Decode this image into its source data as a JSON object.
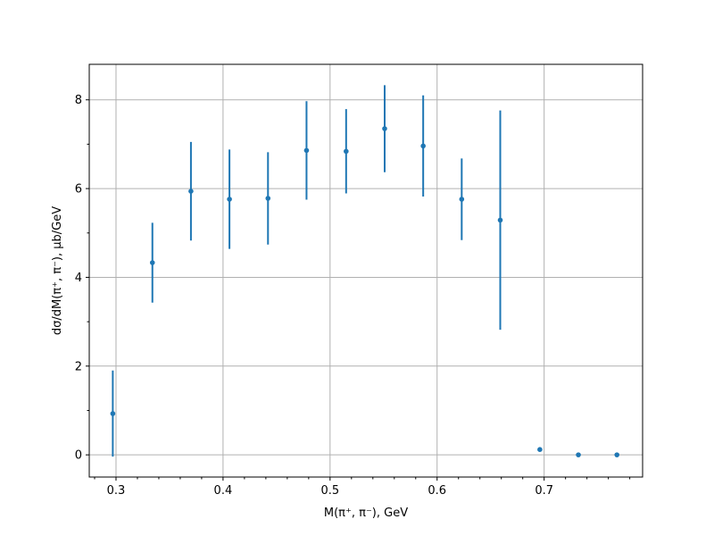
{
  "chart_data": {
    "type": "scatter",
    "xlabel": "M(π⁺, π⁻), GeV",
    "ylabel": "dσ/dM(π⁺, π⁻), μb/GeV",
    "xlim": [
      0.275,
      0.792
    ],
    "ylim": [
      -0.5,
      8.8
    ],
    "x_ticks": [
      0.3,
      0.4,
      0.5,
      0.6,
      0.7
    ],
    "x_tick_labels": [
      "0.3",
      "0.4",
      "0.5",
      "0.6",
      "0.7"
    ],
    "x_minor_ticks": [
      0.28,
      0.32,
      0.34,
      0.36,
      0.38,
      0.42,
      0.44,
      0.46,
      0.48,
      0.52,
      0.54,
      0.56,
      0.58,
      0.62,
      0.64,
      0.66,
      0.68,
      0.72,
      0.74,
      0.76,
      0.78
    ],
    "y_ticks": [
      0,
      2,
      4,
      6,
      8
    ],
    "y_tick_labels": [
      "0",
      "2",
      "4",
      "6",
      "8"
    ],
    "y_minor_ticks": [
      1,
      3,
      5,
      7
    ],
    "grid": true,
    "color": "#1f77b4",
    "points": [
      {
        "x": 0.297,
        "y": 0.93,
        "err": 0.97
      },
      {
        "x": 0.334,
        "y": 4.33,
        "err": 0.9
      },
      {
        "x": 0.37,
        "y": 5.94,
        "err": 1.11
      },
      {
        "x": 0.406,
        "y": 5.76,
        "err": 1.12
      },
      {
        "x": 0.442,
        "y": 5.78,
        "err": 1.04
      },
      {
        "x": 0.478,
        "y": 6.86,
        "err": 1.11
      },
      {
        "x": 0.515,
        "y": 6.84,
        "err": 0.95
      },
      {
        "x": 0.551,
        "y": 7.35,
        "err": 0.98
      },
      {
        "x": 0.587,
        "y": 6.96,
        "err": 1.14
      },
      {
        "x": 0.623,
        "y": 5.76,
        "err": 0.92
      },
      {
        "x": 0.659,
        "y": 5.29,
        "err": 2.47
      },
      {
        "x": 0.696,
        "y": 0.12,
        "err": 0.03
      },
      {
        "x": 0.732,
        "y": 0.0,
        "err": 0.0
      },
      {
        "x": 0.768,
        "y": 0.0,
        "err": 0.0
      }
    ]
  }
}
